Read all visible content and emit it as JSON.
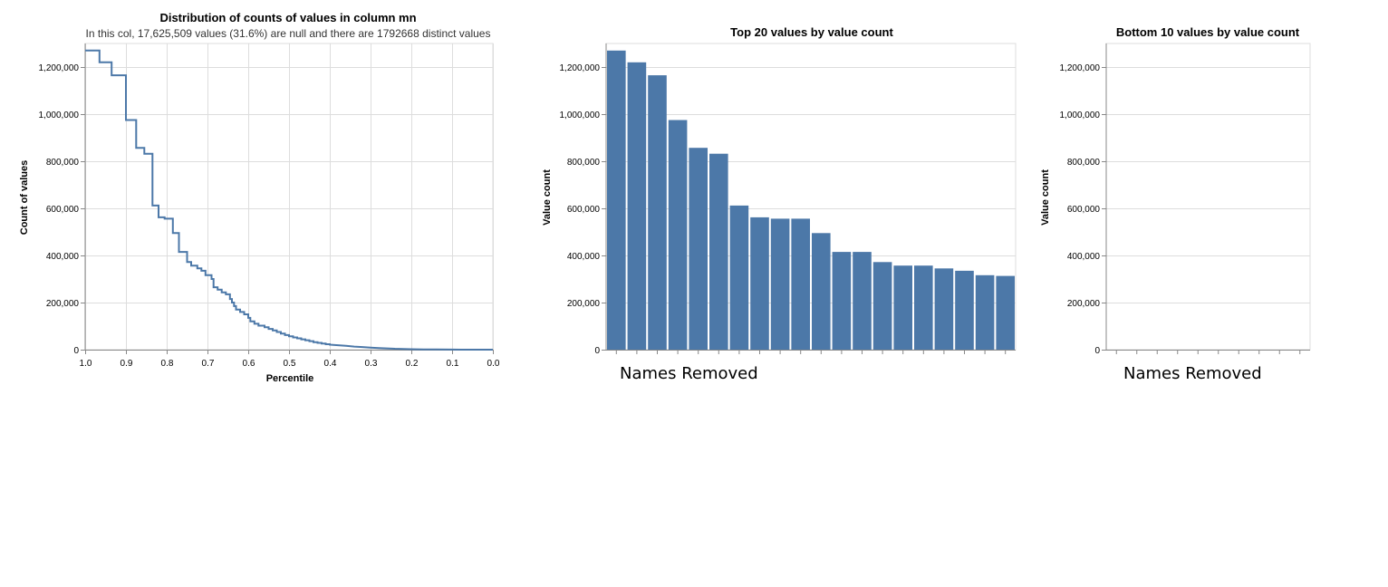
{
  "overlay_labels": {
    "top_chart_names": "Names Removed",
    "bottom_chart_names": "Names Removed"
  },
  "colors": {
    "bar": "#4c78a8",
    "line": "#4c78a8",
    "grid": "#dddddd",
    "axis": "#888888",
    "text": "#000000"
  },
  "chart_data": [
    {
      "type": "line",
      "title": "Distribution of counts of values in column mn",
      "subtitle": "In this col, 17,625,509 values (31.6%) are null and there are 1792668 distinct values",
      "xlabel": "Percentile",
      "ylabel": "Count of values",
      "x_reversed": true,
      "xlim": [
        1.0,
        0.0
      ],
      "ylim": [
        0,
        1300000
      ],
      "x_ticks": [
        "1.0",
        "0.9",
        "0.8",
        "0.7",
        "0.6",
        "0.5",
        "0.4",
        "0.3",
        "0.2",
        "0.1",
        "0.0"
      ],
      "y_ticks": [
        "0",
        "200,000",
        "400,000",
        "600,000",
        "800,000",
        "1,000,000",
        "1,200,000"
      ],
      "y_tick_values": [
        0,
        200000,
        400000,
        600000,
        800000,
        1000000,
        1200000
      ],
      "interpolation": "step",
      "grid": true,
      "points": [
        [
          1.0,
          1270000
        ],
        [
          0.965,
          1270000
        ],
        [
          0.965,
          1220000
        ],
        [
          0.935,
          1220000
        ],
        [
          0.935,
          1165000
        ],
        [
          0.9,
          1165000
        ],
        [
          0.9,
          975000
        ],
        [
          0.875,
          975000
        ],
        [
          0.875,
          857000
        ],
        [
          0.855,
          857000
        ],
        [
          0.855,
          832000
        ],
        [
          0.835,
          832000
        ],
        [
          0.835,
          612000
        ],
        [
          0.82,
          612000
        ],
        [
          0.82,
          562000
        ],
        [
          0.805,
          562000
        ],
        [
          0.805,
          556000
        ],
        [
          0.785,
          556000
        ],
        [
          0.785,
          495000
        ],
        [
          0.77,
          495000
        ],
        [
          0.77,
          415000
        ],
        [
          0.75,
          415000
        ],
        [
          0.75,
          372000
        ],
        [
          0.74,
          372000
        ],
        [
          0.74,
          357000
        ],
        [
          0.725,
          357000
        ],
        [
          0.725,
          345000
        ],
        [
          0.715,
          345000
        ],
        [
          0.715,
          335000
        ],
        [
          0.705,
          335000
        ],
        [
          0.705,
          316000
        ],
        [
          0.69,
          316000
        ],
        [
          0.69,
          300000
        ],
        [
          0.685,
          300000
        ],
        [
          0.685,
          265000
        ],
        [
          0.675,
          265000
        ],
        [
          0.675,
          255000
        ],
        [
          0.665,
          255000
        ],
        [
          0.665,
          243000
        ],
        [
          0.655,
          243000
        ],
        [
          0.655,
          235000
        ],
        [
          0.645,
          235000
        ],
        [
          0.645,
          215000
        ],
        [
          0.64,
          215000
        ],
        [
          0.64,
          200000
        ],
        [
          0.635,
          200000
        ],
        [
          0.635,
          185000
        ],
        [
          0.63,
          185000
        ],
        [
          0.63,
          170000
        ],
        [
          0.62,
          170000
        ],
        [
          0.62,
          160000
        ],
        [
          0.61,
          160000
        ],
        [
          0.61,
          150000
        ],
        [
          0.6,
          150000
        ],
        [
          0.6,
          135000
        ],
        [
          0.595,
          135000
        ],
        [
          0.595,
          120000
        ],
        [
          0.585,
          120000
        ],
        [
          0.585,
          110000
        ],
        [
          0.575,
          110000
        ],
        [
          0.575,
          102000
        ],
        [
          0.56,
          102000
        ],
        [
          0.56,
          95000
        ],
        [
          0.55,
          95000
        ],
        [
          0.55,
          88000
        ],
        [
          0.54,
          88000
        ],
        [
          0.54,
          82000
        ],
        [
          0.53,
          82000
        ],
        [
          0.53,
          75000
        ],
        [
          0.52,
          75000
        ],
        [
          0.52,
          68000
        ],
        [
          0.51,
          68000
        ],
        [
          0.51,
          62000
        ],
        [
          0.5,
          62000
        ],
        [
          0.5,
          57000
        ],
        [
          0.49,
          57000
        ],
        [
          0.49,
          52000
        ],
        [
          0.48,
          52000
        ],
        [
          0.48,
          48000
        ],
        [
          0.47,
          48000
        ],
        [
          0.47,
          44000
        ],
        [
          0.46,
          44000
        ],
        [
          0.46,
          40000
        ],
        [
          0.45,
          40000
        ],
        [
          0.45,
          36000
        ],
        [
          0.44,
          36000
        ],
        [
          0.44,
          32000
        ],
        [
          0.43,
          32000
        ],
        [
          0.43,
          29000
        ],
        [
          0.42,
          29000
        ],
        [
          0.42,
          26000
        ],
        [
          0.41,
          26000
        ],
        [
          0.41,
          23000
        ],
        [
          0.4,
          23000
        ],
        [
          0.4,
          21000
        ],
        [
          0.38,
          19000
        ],
        [
          0.36,
          16000
        ],
        [
          0.34,
          13000
        ],
        [
          0.32,
          11000
        ],
        [
          0.3,
          9000
        ],
        [
          0.28,
          7000
        ],
        [
          0.26,
          5500
        ],
        [
          0.24,
          4000
        ],
        [
          0.22,
          3000
        ],
        [
          0.2,
          2000
        ],
        [
          0.17,
          1200
        ],
        [
          0.14,
          700
        ],
        [
          0.1,
          300
        ],
        [
          0.05,
          100
        ],
        [
          0.0,
          0
        ]
      ]
    },
    {
      "type": "bar",
      "title": "Top 20 values by value count",
      "xlabel": "",
      "ylabel": "Value count",
      "ylim": [
        0,
        1300000
      ],
      "y_ticks": [
        "0",
        "200,000",
        "400,000",
        "600,000",
        "800,000",
        "1,000,000",
        "1,200,000"
      ],
      "y_tick_values": [
        0,
        200000,
        400000,
        600000,
        800000,
        1000000,
        1200000
      ],
      "grid": true,
      "values": [
        1270000,
        1220000,
        1165000,
        975000,
        857000,
        832000,
        612000,
        562000,
        556000,
        556000,
        495000,
        415000,
        415000,
        372000,
        357000,
        357000,
        345000,
        335000,
        316000,
        313000
      ]
    },
    {
      "type": "bar",
      "title": "Bottom 10 values by value count",
      "xlabel": "",
      "ylabel": "Value count",
      "ylim": [
        0,
        1300000
      ],
      "y_ticks": [
        "0",
        "200,000",
        "400,000",
        "600,000",
        "800,000",
        "1,000,000",
        "1,200,000"
      ],
      "y_tick_values": [
        0,
        200000,
        400000,
        600000,
        800000,
        1000000,
        1200000
      ],
      "grid": true,
      "values": [
        1,
        1,
        1,
        1,
        1,
        1,
        1,
        1,
        1,
        1
      ]
    }
  ]
}
